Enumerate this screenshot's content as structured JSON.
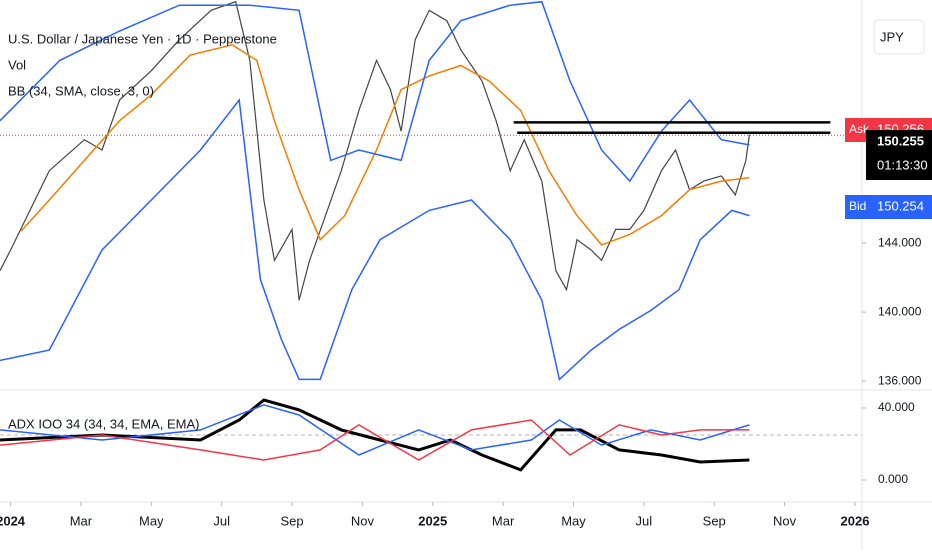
{
  "chart_data": [
    {
      "type": "line",
      "title": "U.S. Dollar / Japanese Yen · 1D · Pepperstone",
      "indicators": [
        "Vol",
        "BB (34, SMA, close, 3, 0)"
      ],
      "currency": "JPY",
      "ask_label": "Ask",
      "ask": "150.256",
      "last": "150.255",
      "countdown": "01:13:30",
      "bid_label": "Bid",
      "bid": "150.254",
      "xlim": [
        -0.3,
        24.2
      ],
      "ylim": [
        135.6,
        158.1
      ],
      "yticks": [
        {
          "value": 136,
          "label": "136.000"
        },
        {
          "value": 140,
          "label": "140.000"
        },
        {
          "value": 144,
          "label": "144.000"
        }
      ],
      "series": [
        {
          "name": "Price",
          "color": "#444444",
          "x": [
            -0.3,
            0.0,
            1.1,
            2.1,
            2.6,
            3.1,
            4.0,
            4.8,
            5.7,
            6.4,
            6.8,
            7.2,
            7.5,
            8.0,
            8.2,
            8.5,
            8.9,
            9.4,
            9.9,
            10.4,
            10.8,
            11.1,
            11.5,
            11.9,
            12.4,
            12.8,
            13.4,
            13.8,
            14.2,
            14.6,
            15.1,
            15.5,
            15.8,
            16.1,
            16.5,
            16.8,
            17.2,
            17.6,
            18.0,
            18.5,
            18.9,
            19.3,
            19.7,
            20.2,
            20.6,
            20.9,
            21.0
          ],
          "values": [
            142.4,
            143.6,
            148.2,
            150.0,
            149.4,
            152.3,
            154.0,
            155.8,
            157.5,
            158.0,
            154.6,
            146.5,
            143.0,
            144.8,
            140.7,
            143.0,
            145.3,
            148.2,
            151.7,
            154.6,
            152.9,
            150.5,
            155.8,
            157.5,
            156.9,
            155.2,
            153.4,
            151.1,
            148.2,
            150.0,
            147.6,
            142.4,
            141.3,
            144.2,
            143.6,
            143.0,
            144.8,
            144.8,
            145.9,
            148.2,
            149.4,
            147.1,
            147.6,
            147.9,
            146.8,
            148.8,
            150.3
          ]
        },
        {
          "name": "Basis",
          "color": "#f57c00",
          "x": [
            0.3,
            1.1,
            2.1,
            3.1,
            4.0,
            5.1,
            6.3,
            7.0,
            7.5,
            8.2,
            8.8,
            9.5,
            10.4,
            11.1,
            11.9,
            12.8,
            13.6,
            14.5,
            15.3,
            16.1,
            16.8,
            17.6,
            18.5,
            19.3,
            20.2,
            21.0
          ],
          "values": [
            144.7,
            146.5,
            148.8,
            151.1,
            152.6,
            154.9,
            155.5,
            154.6,
            151.1,
            147.1,
            144.2,
            145.6,
            149.4,
            152.9,
            153.7,
            154.3,
            153.4,
            151.7,
            148.2,
            145.6,
            143.9,
            144.5,
            145.6,
            147.1,
            147.6,
            147.8
          ]
        },
        {
          "name": "Upper",
          "color": "#2962ff",
          "x": [
            -0.3,
            1.4,
            3.1,
            4.8,
            6.8,
            8.2,
            9.1,
            9.9,
            11.1,
            11.9,
            12.8,
            14.2,
            15.1,
            15.9,
            16.8,
            17.6,
            18.5,
            19.3,
            20.2,
            21.0
          ],
          "values": [
            151.1,
            154.6,
            156.3,
            157.8,
            157.8,
            157.5,
            148.8,
            149.4,
            148.8,
            154.6,
            156.9,
            157.8,
            158.0,
            153.4,
            149.4,
            147.6,
            150.5,
            152.3,
            150.0,
            149.7
          ]
        },
        {
          "name": "Lower",
          "color": "#2962ff",
          "x": [
            -0.3,
            1.1,
            2.6,
            4.0,
            5.4,
            6.5,
            7.1,
            7.7,
            8.2,
            8.8,
            9.7,
            10.5,
            11.9,
            13.1,
            14.2,
            15.1,
            15.6,
            16.5,
            17.3,
            18.2,
            19.0,
            19.6,
            20.5,
            21.0
          ],
          "values": [
            137.2,
            137.8,
            143.6,
            146.5,
            149.4,
            152.3,
            141.9,
            138.4,
            136.1,
            136.1,
            141.3,
            144.2,
            145.9,
            146.5,
            144.2,
            140.7,
            136.1,
            137.8,
            139.0,
            140.1,
            141.3,
            144.2,
            145.9,
            145.6
          ]
        }
      ],
      "levels": [
        {
          "value": 151.0,
          "x": [
            14.3,
            23.3
          ]
        },
        {
          "value": 150.4,
          "x": [
            14.4,
            23.3
          ]
        }
      ]
    },
    {
      "type": "line",
      "title": "ADX IOO 34 (34, 34, EMA, EMA)",
      "xlim": [
        -0.3,
        24.2
      ],
      "xticks": [
        {
          "value": 0,
          "label": "2024"
        },
        {
          "value": 2,
          "label": "Mar"
        },
        {
          "value": 4,
          "label": "May"
        },
        {
          "value": 6,
          "label": "Jul"
        },
        {
          "value": 8,
          "label": "Sep"
        },
        {
          "value": 10,
          "label": "Nov"
        },
        {
          "value": 12,
          "label": "2025"
        },
        {
          "value": 14,
          "label": "Mar"
        },
        {
          "value": 16,
          "label": "May"
        },
        {
          "value": 18,
          "label": "Jul"
        },
        {
          "value": 20,
          "label": "Sep"
        },
        {
          "value": 22,
          "label": "Nov"
        },
        {
          "value": 24,
          "label": "2026"
        }
      ],
      "ylim": [
        -11.1,
        47.2
      ],
      "yticks": [
        {
          "value": 0,
          "label": "0.000"
        },
        {
          "value": 40,
          "label": "40.000"
        }
      ],
      "reference": 25,
      "series": [
        {
          "name": "ADX",
          "color": "#000000",
          "x": [
            -0.3,
            2.6,
            5.4,
            6.5,
            7.2,
            8.2,
            9.4,
            10.5,
            11.6,
            12.5,
            13.4,
            14.5,
            15.5,
            16.2,
            17.3,
            18.5,
            19.6,
            21.0
          ],
          "values": [
            22.2,
            25.0,
            22.2,
            33.3,
            44.4,
            38.9,
            27.8,
            22.2,
            16.7,
            22.2,
            13.9,
            5.6,
            27.8,
            27.8,
            16.7,
            13.9,
            10.0,
            11.1
          ]
        },
        {
          "name": "+DI",
          "color": "#2962ff",
          "x": [
            -0.3,
            2.6,
            5.4,
            7.2,
            8.2,
            9.9,
            11.6,
            13.1,
            14.8,
            15.6,
            16.8,
            18.2,
            19.6,
            21.0
          ],
          "values": [
            27.8,
            22.2,
            27.8,
            41.7,
            36.1,
            13.9,
            27.8,
            16.7,
            22.2,
            33.3,
            19.4,
            27.8,
            22.2,
            30.6
          ]
        },
        {
          "name": "-DI",
          "color": "#f23645",
          "x": [
            -0.3,
            2.6,
            5.4,
            7.2,
            8.8,
            9.9,
            11.6,
            13.1,
            14.8,
            15.9,
            17.3,
            18.5,
            19.6,
            21.0
          ],
          "values": [
            19.4,
            25.0,
            16.7,
            11.1,
            16.7,
            30.6,
            11.1,
            27.8,
            33.3,
            13.9,
            30.6,
            25.0,
            27.8,
            27.8
          ]
        }
      ]
    }
  ]
}
